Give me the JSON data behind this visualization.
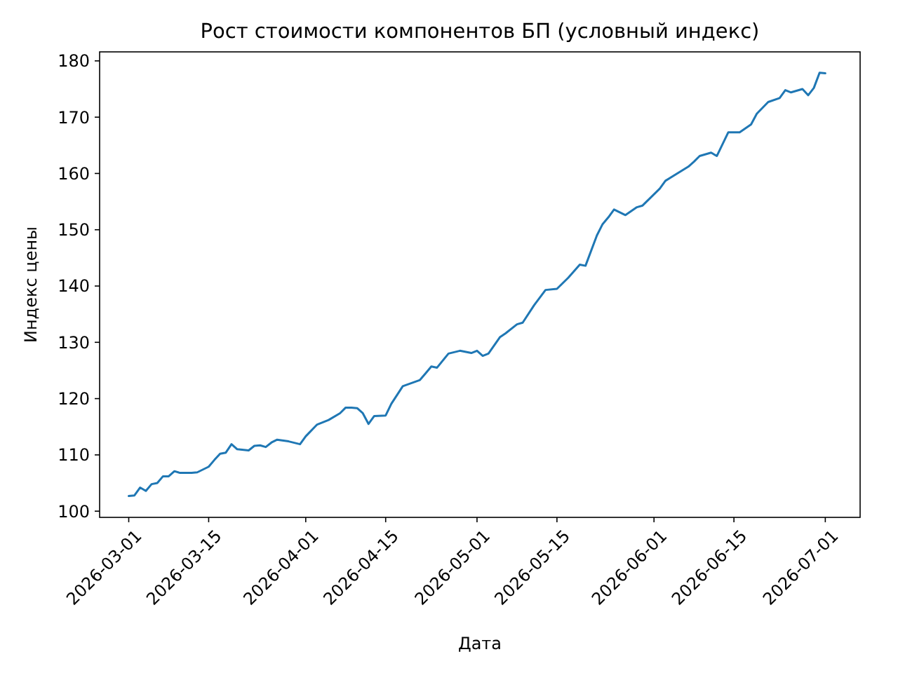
{
  "chart_data": {
    "type": "line",
    "title": "Рост стоимости компонентов БП (условный индекс)",
    "xlabel": "Дата",
    "ylabel": "Индекс цены",
    "x": [
      "2026-03-01",
      "2026-03-02",
      "2026-03-03",
      "2026-03-04",
      "2026-03-05",
      "2026-03-06",
      "2026-03-07",
      "2026-03-08",
      "2026-03-09",
      "2026-03-10",
      "2026-03-12",
      "2026-03-13",
      "2026-03-15",
      "2026-03-16",
      "2026-03-17",
      "2026-03-18",
      "2026-03-19",
      "2026-03-20",
      "2026-03-22",
      "2026-03-23",
      "2026-03-24",
      "2026-03-25",
      "2026-03-26",
      "2026-03-27",
      "2026-03-29",
      "2026-03-31",
      "2026-04-01",
      "2026-04-03",
      "2026-04-05",
      "2026-04-07",
      "2026-04-08",
      "2026-04-09",
      "2026-04-10",
      "2026-04-11",
      "2026-04-12",
      "2026-04-13",
      "2026-04-15",
      "2026-04-16",
      "2026-04-18",
      "2026-04-21",
      "2026-04-22",
      "2026-04-23",
      "2026-04-24",
      "2026-04-26",
      "2026-04-28",
      "2026-04-30",
      "2026-05-01",
      "2026-05-02",
      "2026-05-03",
      "2026-05-05",
      "2026-05-06",
      "2026-05-08",
      "2026-05-09",
      "2026-05-11",
      "2026-05-13",
      "2026-05-15",
      "2026-05-17",
      "2026-05-19",
      "2026-05-20",
      "2026-05-22",
      "2026-05-23",
      "2026-05-24",
      "2026-05-25",
      "2026-05-27",
      "2026-05-29",
      "2026-05-30",
      "2026-06-02",
      "2026-06-03",
      "2026-06-07",
      "2026-06-08",
      "2026-06-09",
      "2026-06-11",
      "2026-06-12",
      "2026-06-14",
      "2026-06-16",
      "2026-06-18",
      "2026-06-19",
      "2026-06-21",
      "2026-06-23",
      "2026-06-24",
      "2026-06-25",
      "2026-06-27",
      "2026-06-28",
      "2026-06-29",
      "2026-06-30",
      "2026-07-01"
    ],
    "series": [
      {
        "color": "#1f77b4",
        "values": [
          102.7,
          102.8,
          104.2,
          103.6,
          104.8,
          105.0,
          106.2,
          106.2,
          107.1,
          106.8,
          106.8,
          106.9,
          107.9,
          109.1,
          110.2,
          110.4,
          111.9,
          111.0,
          110.8,
          111.6,
          111.7,
          111.4,
          112.2,
          112.7,
          112.4,
          111.9,
          113.3,
          115.4,
          116.2,
          117.4,
          118.4,
          118.4,
          118.3,
          117.4,
          115.5,
          116.9,
          117.0,
          119.1,
          122.2,
          123.3,
          124.5,
          125.7,
          125.5,
          128.0,
          128.5,
          128.1,
          128.5,
          127.6,
          128.0,
          130.9,
          131.6,
          133.2,
          133.5,
          136.6,
          139.3,
          139.5,
          141.5,
          143.8,
          143.6,
          149.0,
          151.0,
          152.2,
          153.6,
          152.6,
          154.0,
          154.3,
          157.3,
          158.7,
          161.2,
          162.1,
          163.1,
          163.7,
          163.1,
          167.3,
          167.3,
          168.7,
          170.6,
          172.7,
          173.4,
          174.8,
          174.4,
          175.0,
          173.9,
          175.2,
          177.9,
          177.8
        ]
      }
    ],
    "xlim": [
      "2026-02-23T21:36",
      "2026-07-07T02:24"
    ],
    "xticks": [
      "2026-03-01",
      "2026-03-15",
      "2026-04-01",
      "2026-04-15",
      "2026-05-01",
      "2026-05-15",
      "2026-06-01",
      "2026-06-15",
      "2026-07-01"
    ],
    "ylim": [
      98.9,
      181.6
    ],
    "yticks": [
      100,
      110,
      120,
      130,
      140,
      150,
      160,
      170,
      180
    ]
  }
}
